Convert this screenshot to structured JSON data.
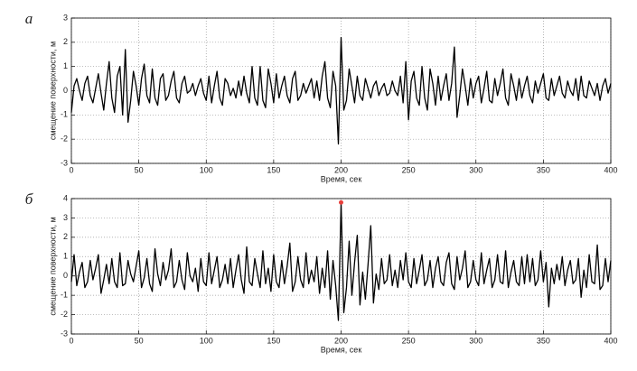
{
  "chart_data": [
    {
      "type": "line",
      "panel_label": "а",
      "xlabel": "Время, сек",
      "ylabel": "смещение поверхности, м",
      "xlim": [
        0,
        400
      ],
      "xticks": [
        0,
        50,
        100,
        150,
        200,
        250,
        300,
        350,
        400
      ],
      "ylim": [
        -3,
        3
      ],
      "yticks": [
        -3,
        -2,
        -1,
        0,
        1,
        2,
        3
      ],
      "grid": true,
      "color": "#000000",
      "x": [
        0,
        2,
        4,
        6,
        8,
        10,
        12,
        14,
        16,
        18,
        20,
        22,
        24,
        26,
        28,
        30,
        32,
        34,
        36,
        38,
        40,
        42,
        44,
        46,
        48,
        50,
        52,
        54,
        56,
        58,
        60,
        62,
        64,
        66,
        68,
        70,
        72,
        74,
        76,
        78,
        80,
        82,
        84,
        86,
        88,
        90,
        92,
        94,
        96,
        98,
        100,
        102,
        104,
        106,
        108,
        110,
        112,
        114,
        116,
        118,
        120,
        122,
        124,
        126,
        128,
        130,
        132,
        134,
        136,
        138,
        140,
        142,
        144,
        146,
        148,
        150,
        152,
        154,
        156,
        158,
        160,
        162,
        164,
        166,
        168,
        170,
        172,
        174,
        176,
        178,
        180,
        182,
        184,
        186,
        188,
        190,
        192,
        194,
        196,
        198,
        200,
        202,
        204,
        206,
        208,
        210,
        212,
        214,
        216,
        218,
        220,
        222,
        224,
        226,
        228,
        230,
        232,
        234,
        236,
        238,
        240,
        242,
        244,
        246,
        248,
        250,
        252,
        254,
        256,
        258,
        260,
        262,
        264,
        266,
        268,
        270,
        272,
        274,
        276,
        278,
        280,
        282,
        284,
        286,
        288,
        290,
        292,
        294,
        296,
        298,
        300,
        302,
        304,
        306,
        308,
        310,
        312,
        314,
        316,
        318,
        320,
        322,
        324,
        326,
        328,
        330,
        332,
        334,
        336,
        338,
        340,
        342,
        344,
        346,
        348,
        350,
        352,
        354,
        356,
        358,
        360,
        362,
        364,
        366,
        368,
        370,
        372,
        374,
        376,
        378,
        380,
        382,
        384,
        386,
        388,
        390,
        392,
        394,
        396,
        398,
        400
      ],
      "values": [
        -0.9,
        0.2,
        0.5,
        0,
        -0.4,
        0.3,
        0.6,
        -0.2,
        -0.5,
        0.1,
        0.7,
        -0.1,
        -0.8,
        0.3,
        1.2,
        -0.3,
        -0.9,
        0.6,
        1.0,
        -1.0,
        1.7,
        -1.3,
        -0.4,
        0.8,
        0.2,
        -0.6,
        0.5,
        1.1,
        -0.2,
        -0.5,
        0.9,
        -0.3,
        -0.6,
        0.5,
        0.7,
        -0.4,
        -0.2,
        0.4,
        0.8,
        -0.3,
        -0.5,
        0.3,
        0.6,
        -0.1,
        0.0,
        0.3,
        -0.2,
        0.2,
        0.5,
        -0.1,
        -0.4,
        0.6,
        -0.5,
        0.2,
        0.8,
        -0.3,
        -0.6,
        0.5,
        0.3,
        -0.2,
        0.1,
        -0.3,
        0.4,
        -0.2,
        0.6,
        -0.1,
        -0.5,
        1.0,
        -0.3,
        -0.6,
        1.0,
        -0.4,
        -0.7,
        0.9,
        0.3,
        -0.5,
        0.7,
        -0.3,
        0.2,
        0.6,
        -0.2,
        -0.5,
        0.5,
        0.8,
        -0.4,
        -0.2,
        0.3,
        -0.1,
        0.2,
        0.5,
        -0.3,
        0.4,
        -0.4,
        0.6,
        1.2,
        -0.3,
        -0.7,
        0.8,
        0.2,
        -2.2,
        2.2,
        -0.8,
        -0.4,
        0.9,
        0.2,
        -0.5,
        0.6,
        -0.2,
        -0.4,
        0.5,
        0.1,
        -0.3,
        0.2,
        0.4,
        -0.2,
        0.1,
        0.3,
        -0.2,
        -0.1,
        0.4,
        0.0,
        -0.2,
        0.6,
        -0.5,
        1.2,
        -1.2,
        0.4,
        0.8,
        -0.3,
        -0.6,
        1.0,
        -0.3,
        -0.8,
        0.9,
        0.3,
        -0.6,
        0.6,
        -0.4,
        0.2,
        0.7,
        -0.4,
        0.3,
        1.8,
        -1.1,
        -0.2,
        0.9,
        0.2,
        -0.6,
        0.5,
        -0.3,
        0.3,
        0.6,
        -0.5,
        0.1,
        0.8,
        -0.4,
        -0.5,
        0.5,
        -0.2,
        0.3,
        0.9,
        -0.3,
        -0.6,
        0.7,
        0.2,
        -0.4,
        0.5,
        -0.3,
        0.2,
        0.6,
        -0.2,
        -0.5,
        0.4,
        -0.1,
        0.3,
        0.7,
        -0.3,
        -0.4,
        0.5,
        -0.2,
        0.2,
        0.6,
        -0.1,
        -0.3,
        0.4,
        0.0,
        -0.2,
        0.5,
        -0.4,
        0.6,
        -0.2,
        -0.3,
        0.4,
        0.1,
        -0.2,
        0.3,
        -0.4,
        0.2,
        0.5,
        -0.1,
        0.3
      ]
    },
    {
      "type": "line",
      "panel_label": "б",
      "xlabel": "Время, сек",
      "ylabel": "смещение поверхности, м",
      "xlim": [
        0,
        400
      ],
      "xticks": [
        0,
        50,
        100,
        150,
        200,
        250,
        300,
        350,
        400
      ],
      "ylim": [
        -3,
        4
      ],
      "yticks": [
        -3,
        -2,
        -1,
        0,
        1,
        2,
        3,
        4
      ],
      "grid": true,
      "color": "#000000",
      "peak_marker_color": "#e8403c",
      "x": [
        0,
        2,
        4,
        6,
        8,
        10,
        12,
        14,
        16,
        18,
        20,
        22,
        24,
        26,
        28,
        30,
        32,
        34,
        36,
        38,
        40,
        42,
        44,
        46,
        48,
        50,
        52,
        54,
        56,
        58,
        60,
        62,
        64,
        66,
        68,
        70,
        72,
        74,
        76,
        78,
        80,
        82,
        84,
        86,
        88,
        90,
        92,
        94,
        96,
        98,
        100,
        102,
        104,
        106,
        108,
        110,
        112,
        114,
        116,
        118,
        120,
        122,
        124,
        126,
        128,
        130,
        132,
        134,
        136,
        138,
        140,
        142,
        144,
        146,
        148,
        150,
        152,
        154,
        156,
        158,
        160,
        162,
        164,
        166,
        168,
        170,
        172,
        174,
        176,
        178,
        180,
        182,
        184,
        186,
        188,
        190,
        192,
        194,
        196,
        198,
        200,
        202,
        204,
        206,
        208,
        210,
        212,
        214,
        216,
        218,
        220,
        222,
        224,
        226,
        228,
        230,
        232,
        234,
        236,
        238,
        240,
        242,
        244,
        246,
        248,
        250,
        252,
        254,
        256,
        258,
        260,
        262,
        264,
        266,
        268,
        270,
        272,
        274,
        276,
        278,
        280,
        282,
        284,
        286,
        288,
        290,
        292,
        294,
        296,
        298,
        300,
        302,
        304,
        306,
        308,
        310,
        312,
        314,
        316,
        318,
        320,
        322,
        324,
        326,
        328,
        330,
        332,
        334,
        336,
        338,
        340,
        342,
        344,
        346,
        348,
        350,
        352,
        354,
        356,
        358,
        360,
        362,
        364,
        366,
        368,
        370,
        372,
        374,
        376,
        378,
        380,
        382,
        384,
        386,
        388,
        390,
        392,
        394,
        396,
        398,
        400
      ],
      "values": [
        -0.3,
        1.1,
        -0.5,
        0.2,
        0.7,
        -0.6,
        -0.3,
        0.8,
        -0.2,
        0.4,
        1.1,
        -0.9,
        -0.2,
        0.6,
        -0.4,
        0.9,
        -0.3,
        -0.6,
        1.2,
        -0.5,
        -0.4,
        0.8,
        0.1,
        -0.3,
        0.5,
        1.3,
        -0.6,
        -0.1,
        0.9,
        -0.4,
        -0.8,
        1.4,
        0.1,
        -0.5,
        0.7,
        -0.2,
        0.3,
        1.4,
        -0.6,
        -0.3,
        0.8,
        -0.2,
        -0.7,
        1.2,
        0.0,
        -0.3,
        0.4,
        -0.8,
        0.9,
        -0.3,
        -0.5,
        1.2,
        -0.4,
        0.3,
        1.0,
        -0.6,
        -0.2,
        0.6,
        -0.4,
        0.9,
        -0.6,
        0.3,
        1.1,
        -0.2,
        -0.9,
        1.5,
        -0.3,
        -0.5,
        0.9,
        0.1,
        -0.6,
        1.3,
        -0.4,
        0.4,
        -0.8,
        1.1,
        -0.3,
        -0.6,
        0.8,
        -0.4,
        0.5,
        1.7,
        -0.8,
        -0.3,
        1.0,
        -0.2,
        -0.6,
        1.2,
        -0.4,
        0.3,
        -0.3,
        1.0,
        -0.9,
        0.4,
        -0.6,
        1.3,
        -1.2,
        0.8,
        -0.5,
        -2.3,
        3.8,
        -1.9,
        -0.6,
        1.8,
        -1.0,
        0.7,
        2.1,
        -1.5,
        0.2,
        -1.2,
        0.6,
        2.6,
        -1.4,
        0.1,
        -0.7,
        0.9,
        -0.4,
        -0.2,
        1.1,
        -0.5,
        0.3,
        -0.6,
        0.8,
        -0.2,
        1.2,
        -0.3,
        -0.6,
        0.9,
        -0.4,
        0.3,
        1.1,
        -0.5,
        -0.2,
        0.8,
        -0.6,
        0.4,
        1.0,
        -0.3,
        -0.5,
        0.7,
        1.2,
        -0.4,
        -0.7,
        1.0,
        -0.2,
        0.4,
        1.3,
        -0.6,
        -0.3,
        0.8,
        -0.2,
        -0.5,
        1.2,
        -0.4,
        0.3,
        0.9,
        -0.6,
        -0.2,
        1.1,
        -0.3,
        -0.4,
        1.3,
        -0.6,
        0.2,
        0.8,
        -0.3,
        -0.5,
        1.0,
        -0.4,
        1.1,
        -0.3,
        0.9,
        -0.5,
        -0.2,
        1.3,
        -0.3,
        0.7,
        -1.6,
        0.4,
        -0.4,
        0.6,
        -0.2,
        1.0,
        -0.5,
        0.3,
        0.8,
        -0.4,
        -0.2,
        0.9,
        -1.1,
        0.3,
        -0.6,
        1.1,
        -0.3,
        -0.4,
        1.6,
        -0.7,
        -0.5,
        0.9,
        -0.3,
        0.8
      ]
    }
  ]
}
